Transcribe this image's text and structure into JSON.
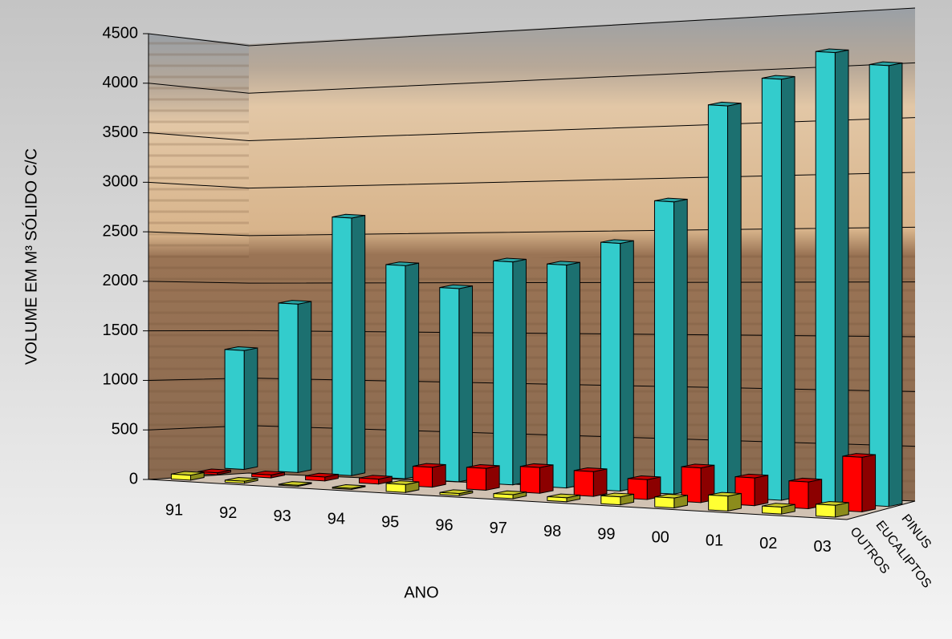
{
  "chart_data": {
    "type": "bar",
    "x_label": "ANO",
    "y_label": "VOLUME EM M³ SÓLIDO C/C",
    "categories": [
      "91",
      "92",
      "93",
      "94",
      "95",
      "96",
      "97",
      "98",
      "99",
      "00",
      "01",
      "02",
      "03"
    ],
    "series": [
      {
        "name": "PINUS",
        "color": "#33cccc",
        "values": [
          1200,
          1700,
          2600,
          2150,
          1950,
          2250,
          2250,
          2500,
          2950,
          3950,
          4250,
          4550,
          4450
        ]
      },
      {
        "name": "EUCALIPTOS",
        "color": "#ff0000",
        "values": [
          20,
          30,
          40,
          50,
          200,
          220,
          260,
          250,
          200,
          350,
          280,
          270,
          550
        ]
      },
      {
        "name": "OUTROS",
        "color": "#ffff33",
        "values": [
          50,
          20,
          10,
          10,
          80,
          20,
          40,
          40,
          80,
          100,
          150,
          70,
          120
        ]
      }
    ],
    "ylim": [
      0,
      4500
    ],
    "yticks": [
      0,
      500,
      1000,
      1500,
      2000,
      2500,
      3000,
      3500,
      4000,
      4500
    ],
    "grid": true
  }
}
